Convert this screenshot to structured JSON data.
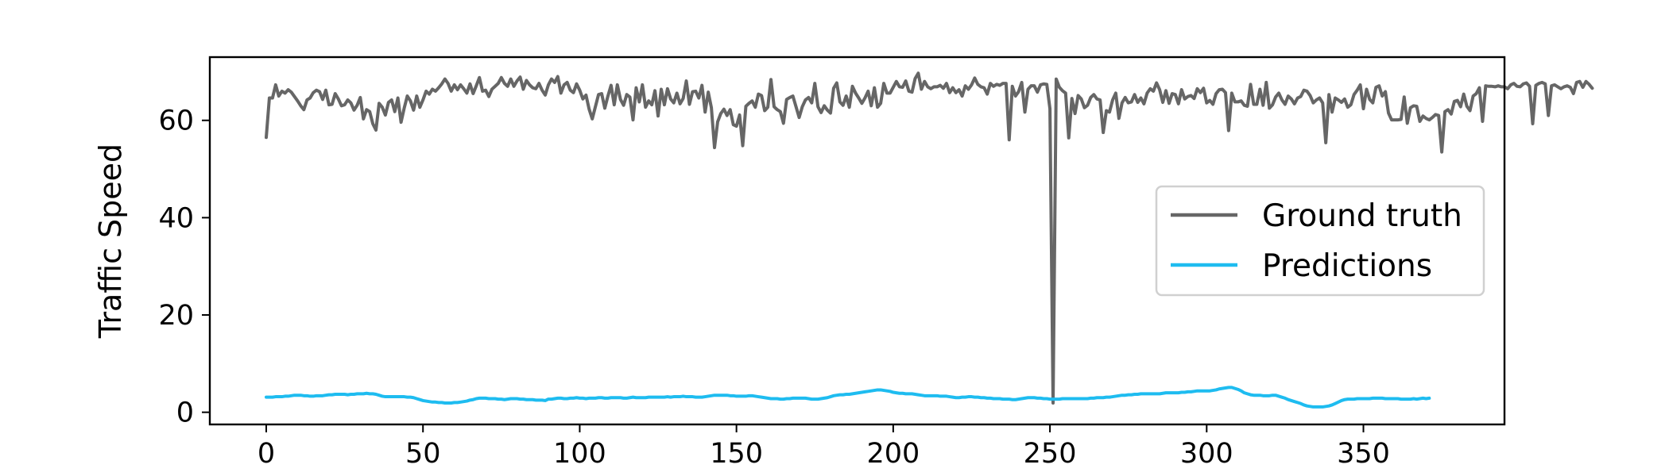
{
  "chart_data": {
    "type": "line",
    "title": "",
    "xlabel": "",
    "ylabel": "Traffic Speed",
    "xlim": [
      -18,
      395
    ],
    "ylim": [
      -2.5,
      73
    ],
    "xticks": [
      0,
      50,
      100,
      150,
      200,
      250,
      300,
      350
    ],
    "yticks": [
      0,
      20,
      40,
      60
    ],
    "grid": false,
    "legend_position": "center-right",
    "x_start": 0,
    "x_step": 1,
    "series": [
      {
        "name": "Ground truth",
        "color": "#666666",
        "values": [
          56.5,
          64.6,
          64.6,
          67.3,
          65.0,
          66.0,
          65.6,
          66.3,
          65.8,
          64.9,
          64.0,
          63.0,
          62.2,
          64.2,
          64.6,
          65.7,
          66.2,
          65.9,
          64.3,
          66.2,
          63.2,
          63.3,
          65.5,
          64.4,
          63.0,
          63.2,
          64.2,
          63.6,
          62.1,
          63.1,
          64.7,
          60.3,
          62.2,
          61.8,
          59.3,
          58.0,
          63.5,
          62.7,
          61.1,
          63.7,
          64.2,
          61.8,
          64.6,
          59.6,
          62.5,
          65.0,
          64.0,
          62.1,
          65.0,
          62.7,
          64.2,
          66.0,
          65.4,
          66.4,
          66.0,
          66.7,
          67.5,
          68.5,
          67.6,
          66.0,
          67.3,
          66.3,
          67.3,
          66.5,
          65.6,
          67.5,
          65.5,
          67.1,
          68.8,
          66.0,
          66.2,
          64.9,
          66.4,
          67.0,
          67.6,
          68.8,
          67.6,
          67.0,
          68.5,
          67.0,
          68.1,
          68.9,
          66.4,
          68.2,
          67.3,
          66.7,
          66.5,
          67.6,
          66.2,
          65.2,
          67.3,
          68.5,
          67.8,
          69.0,
          65.6,
          67.3,
          67.8,
          66.2,
          65.7,
          67.5,
          66.2,
          64.4,
          65.2,
          62.3,
          60.3,
          62.8,
          65.3,
          65.5,
          62.5,
          65.0,
          67.2,
          63.2,
          67.3,
          64.3,
          63.1,
          65.3,
          64.8,
          60.1,
          66.7,
          63.8,
          67.3,
          62.7,
          64.0,
          63.2,
          66.1,
          60.9,
          66.4,
          63.2,
          66.5,
          64.4,
          63.6,
          65.6,
          63.4,
          64.5,
          68.1,
          63.3,
          65.9,
          66.0,
          64.6,
          67.2,
          61.7,
          65.8,
          62.6,
          54.4,
          59.7,
          61.4,
          62.3,
          61.0,
          62.2,
          59.1,
          58.8,
          61.1,
          54.8,
          62.9,
          63.5,
          64.0,
          62.7,
          65.4,
          65.1,
          62.0,
          62.7,
          68.4,
          62.8,
          62.2,
          61.8,
          59.4,
          64.3,
          64.7,
          65.0,
          62.8,
          60.6,
          62.8,
          64.2,
          64.7,
          63.6,
          67.6,
          62.8,
          61.6,
          63.0,
          62.1,
          61.5,
          66.6,
          67.7,
          63.8,
          63.1,
          65.0,
          62.7,
          67.0,
          65.6,
          64.6,
          63.5,
          64.6,
          66.0,
          63.0,
          66.7,
          62.7,
          63.5,
          67.6,
          65.6,
          65.6,
          66.8,
          68.0,
          66.9,
          66.8,
          68.1,
          66.0,
          65.8,
          68.6,
          69.7,
          66.4,
          68.0,
          66.9,
          66.5,
          66.9,
          66.9,
          67.2,
          66.6,
          67.6,
          65.7,
          66.7,
          65.7,
          66.3,
          65.0,
          67.1,
          66.4,
          67.3,
          68.7,
          67.4,
          66.9,
          66.7,
          65.4,
          67.6,
          67.0,
          67.4,
          67.2,
          67.6,
          67.6,
          56.0,
          67.0,
          65.0,
          65.9,
          67.8,
          61.7,
          66.4,
          67.1,
          67.1,
          65.8,
          67.3,
          67.5,
          67.4,
          62.4,
          1.9,
          68.5,
          66.8,
          66.1,
          65.6,
          56.4,
          64.5,
          61.4,
          65.1,
          64.4,
          62.6,
          63.1,
          64.7,
          65.3,
          64.4,
          64.2,
          57.5,
          62.0,
          61.7,
          64.2,
          65.6,
          60.4,
          63.6,
          64.7,
          63.6,
          63.8,
          65.3,
          63.7,
          64.6,
          63.4,
          65.6,
          66.5,
          66.0,
          67.7,
          66.3,
          63.7,
          66.1,
          63.5,
          65.5,
          65.3,
          63.4,
          66.3,
          64.4,
          64.9,
          65.1,
          64.5,
          66.5,
          65.7,
          66.6,
          63.6,
          64.1,
          63.3,
          65.5,
          66.3,
          66.4,
          65.7,
          57.9,
          65.6,
          63.8,
          63.8,
          64.0,
          63.1,
          62.9,
          67.4,
          63.3,
          63.3,
          66.4,
          63.1,
          67.8,
          62.5,
          63.2,
          64.8,
          65.6,
          64.2,
          63.3,
          65.0,
          64.4,
          63.4,
          64.6,
          64.9,
          66.2,
          66.0,
          65.1,
          63.6,
          64.2,
          64.6,
          63.6,
          55.4,
          65.3,
          61.7,
          64.6,
          64.2,
          63.7,
          64.4,
          62.7,
          63.2,
          65.3,
          66.2,
          67.3,
          62.4,
          66.4,
          64.3,
          63.6,
          66.8,
          67.1,
          65.0,
          65.9,
          61.5,
          60.1,
          60.1,
          60.1,
          60.2,
          64.8,
          59.4,
          62.6,
          63.0,
          62.9,
          59.8,
          60.9,
          60.4,
          60.1,
          60.6,
          61.2,
          61.0,
          53.5,
          61.8,
          62.2,
          61.3,
          63.9,
          64.1,
          62.8,
          65.4,
          62.9,
          62.0,
          65.0,
          65.5,
          66.7,
          59.8,
          67.1,
          67.0,
          67.0,
          66.9,
          67.1,
          66.9,
          66.9,
          66.5,
          67.3,
          67.6,
          67.0,
          66.9,
          67.5,
          67.7,
          67.0,
          59.3,
          67.2,
          67.6,
          67.8,
          67.5,
          61.0,
          67.1,
          67.3,
          66.9,
          66.5,
          66.9,
          67.1,
          66.8,
          65.5,
          67.8,
          68.0,
          66.8,
          68.0,
          67.4,
          66.6
        ]
      },
      {
        "name": "Predictions",
        "color": "#1ebcf0",
        "values": [
          3.1,
          3.1,
          3.1,
          3.2,
          3.2,
          3.2,
          3.3,
          3.3,
          3.4,
          3.5,
          3.5,
          3.5,
          3.4,
          3.4,
          3.3,
          3.3,
          3.4,
          3.4,
          3.4,
          3.5,
          3.6,
          3.6,
          3.7,
          3.7,
          3.7,
          3.7,
          3.6,
          3.7,
          3.7,
          3.8,
          3.8,
          3.8,
          3.9,
          3.8,
          3.8,
          3.7,
          3.5,
          3.3,
          3.2,
          3.2,
          3.2,
          3.2,
          3.2,
          3.2,
          3.2,
          3.1,
          3.1,
          3.0,
          2.8,
          2.6,
          2.4,
          2.3,
          2.2,
          2.1,
          2.1,
          2.0,
          2.0,
          1.9,
          1.9,
          1.9,
          2.0,
          2.0,
          2.1,
          2.2,
          2.3,
          2.5,
          2.6,
          2.8,
          2.9,
          2.9,
          2.9,
          2.8,
          2.8,
          2.8,
          2.7,
          2.7,
          2.6,
          2.7,
          2.8,
          2.8,
          2.8,
          2.7,
          2.7,
          2.6,
          2.6,
          2.6,
          2.5,
          2.5,
          2.5,
          2.4,
          2.7,
          2.7,
          2.8,
          2.9,
          2.9,
          2.8,
          2.8,
          2.9,
          2.9,
          3.0,
          2.9,
          2.9,
          2.8,
          2.9,
          2.9,
          2.9,
          3.0,
          3.0,
          2.9,
          2.9,
          3.0,
          3.0,
          3.0,
          3.0,
          2.9,
          2.9,
          3.0,
          3.1,
          3.0,
          3.0,
          3.0,
          3.0,
          3.1,
          3.1,
          3.1,
          3.1,
          3.1,
          3.1,
          3.2,
          3.1,
          3.2,
          3.2,
          3.2,
          3.3,
          3.2,
          3.2,
          3.2,
          3.1,
          3.1,
          3.1,
          3.2,
          3.3,
          3.4,
          3.5,
          3.5,
          3.5,
          3.5,
          3.5,
          3.4,
          3.4,
          3.3,
          3.3,
          3.3,
          3.3,
          3.4,
          3.4,
          3.3,
          3.2,
          3.1,
          3.0,
          2.9,
          2.8,
          2.8,
          2.8,
          2.7,
          2.7,
          2.8,
          2.8,
          2.9,
          2.9,
          2.9,
          2.9,
          2.9,
          2.8,
          2.7,
          2.7,
          2.7,
          2.8,
          2.9,
          3.0,
          3.2,
          3.4,
          3.5,
          3.6,
          3.6,
          3.7,
          3.7,
          3.8,
          3.9,
          4.0,
          4.1,
          4.2,
          4.3,
          4.4,
          4.5,
          4.6,
          4.6,
          4.5,
          4.4,
          4.3,
          4.1,
          4.0,
          3.9,
          3.9,
          3.8,
          3.8,
          3.8,
          3.7,
          3.6,
          3.5,
          3.4,
          3.4,
          3.4,
          3.4,
          3.4,
          3.3,
          3.3,
          3.3,
          3.2,
          3.1,
          3.0,
          3.0,
          3.1,
          3.1,
          3.2,
          3.2,
          3.1,
          3.1,
          3.0,
          3.0,
          2.9,
          2.9,
          2.8,
          2.8,
          2.8,
          2.7,
          2.7,
          2.7,
          2.6,
          2.6,
          2.7,
          2.8,
          2.9,
          3.0,
          3.0,
          3.0,
          2.9,
          2.9,
          2.8,
          2.8,
          2.7,
          2.7,
          2.7,
          2.7,
          2.8,
          2.8,
          2.8,
          2.8,
          2.8,
          2.8,
          2.8,
          2.8,
          2.8,
          2.9,
          2.9,
          3.0,
          3.0,
          3.0,
          3.1,
          3.1,
          3.2,
          3.3,
          3.4,
          3.5,
          3.5,
          3.6,
          3.6,
          3.7,
          3.7,
          3.8,
          3.8,
          3.8,
          3.8,
          3.8,
          3.8,
          3.8,
          3.9,
          4.0,
          4.0,
          4.0,
          4.0,
          4.0,
          4.1,
          4.1,
          4.2,
          4.2,
          4.3,
          4.4,
          4.4,
          4.4,
          4.4,
          4.4,
          4.5,
          4.6,
          4.8,
          4.9,
          5.0,
          5.1,
          5.1,
          4.9,
          4.7,
          4.4,
          4.0,
          3.8,
          3.6,
          3.5,
          3.5,
          3.5,
          3.4,
          3.4,
          3.4,
          3.5,
          3.5,
          3.3,
          3.1,
          2.9,
          2.6,
          2.4,
          2.2,
          2.0,
          1.8,
          1.5,
          1.3,
          1.2,
          1.1,
          1.1,
          1.1,
          1.1,
          1.2,
          1.3,
          1.5,
          1.8,
          2.1,
          2.4,
          2.6,
          2.7,
          2.7,
          2.7,
          2.8,
          2.8,
          2.8,
          2.8,
          2.8,
          2.9,
          2.9,
          2.9,
          2.9,
          2.8,
          2.8,
          2.8,
          2.8,
          2.8,
          2.7,
          2.7,
          2.7,
          2.7,
          2.8,
          2.7,
          2.8,
          2.9,
          2.8,
          2.9
        ]
      }
    ]
  }
}
